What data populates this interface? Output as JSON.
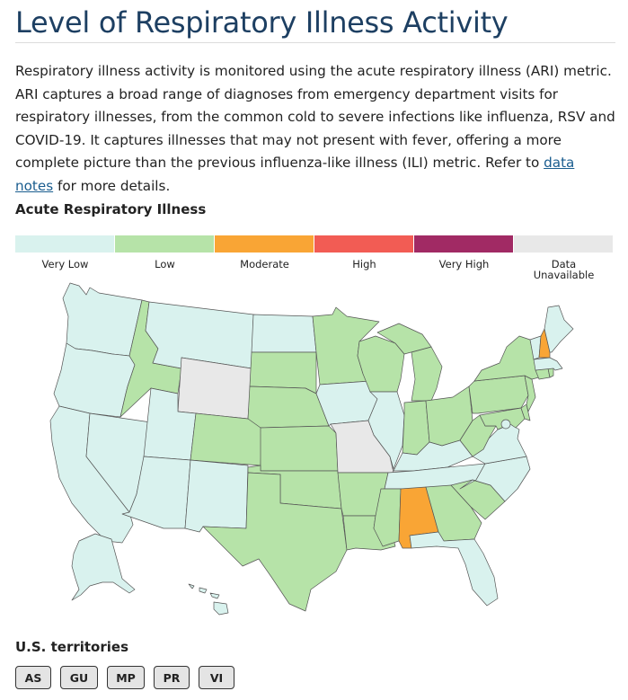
{
  "title": "Level of Respiratory Illness Activity",
  "intro": {
    "text_before": "Respiratory illness activity is monitored using the acute respiratory illness (ARI) metric. ARI captures a broad range of diagnoses from emergency department visits for respiratory illnesses, from the common cold to severe infections like influenza, RSV and COVID-19. It captures illnesses that may not present with fever, offering a more complete picture than the previous influenza-like illness (ILI) metric. Refer to ",
    "link_text": "data notes",
    "text_after": " for more details."
  },
  "map": {
    "title": "Acute Respiratory Illness",
    "legend": [
      {
        "label": "Very Low",
        "color": "#d9f2ee"
      },
      {
        "label": "Low",
        "color": "#b6e3a8"
      },
      {
        "label": "Moderate",
        "color": "#f9a535"
      },
      {
        "label": "High",
        "color": "#f25c54"
      },
      {
        "label": "Very High",
        "color": "#a12a64"
      },
      {
        "label": "Data Unavailable",
        "color": "#e8e8e8"
      }
    ],
    "states": {
      "WA": "Very Low",
      "OR": "Very Low",
      "CA": "Very Low",
      "NV": "Very Low",
      "ID": "Low",
      "MT": "Very Low",
      "WY": "Data Unavailable",
      "UT": "Very Low",
      "AZ": "Very Low",
      "NM": "Very Low",
      "CO": "Low",
      "ND": "Very Low",
      "SD": "Low",
      "NE": "Low",
      "KS": "Low",
      "OK": "Low",
      "TX": "Low",
      "MN": "Low",
      "IA": "Very Low",
      "MO": "Data Unavailable",
      "AR": "Low",
      "LA": "Low",
      "WI": "Low",
      "IL": "Very Low",
      "MI": "Low",
      "IN": "Low",
      "OH": "Low",
      "KY": "Very Low",
      "TN": "Very Low",
      "MS": "Low",
      "AL": "Moderate",
      "GA": "Low",
      "FL": "Very Low",
      "SC": "Low",
      "NC": "Very Low",
      "VA": "Very Low",
      "WV": "Low",
      "PA": "Low",
      "NY": "Low",
      "MD": "Low",
      "DE": "Low",
      "NJ": "Low",
      "CT": "Low",
      "RI": "Low",
      "MA": "Very Low",
      "VT": "Very Low",
      "NH": "Moderate",
      "ME": "Very Low",
      "DC": "Very Low",
      "AK": "Very Low",
      "HI": "Very Low"
    }
  },
  "territories": {
    "title": "U.S. territories",
    "items": [
      "AS",
      "GU",
      "MP",
      "PR",
      "VI"
    ]
  }
}
